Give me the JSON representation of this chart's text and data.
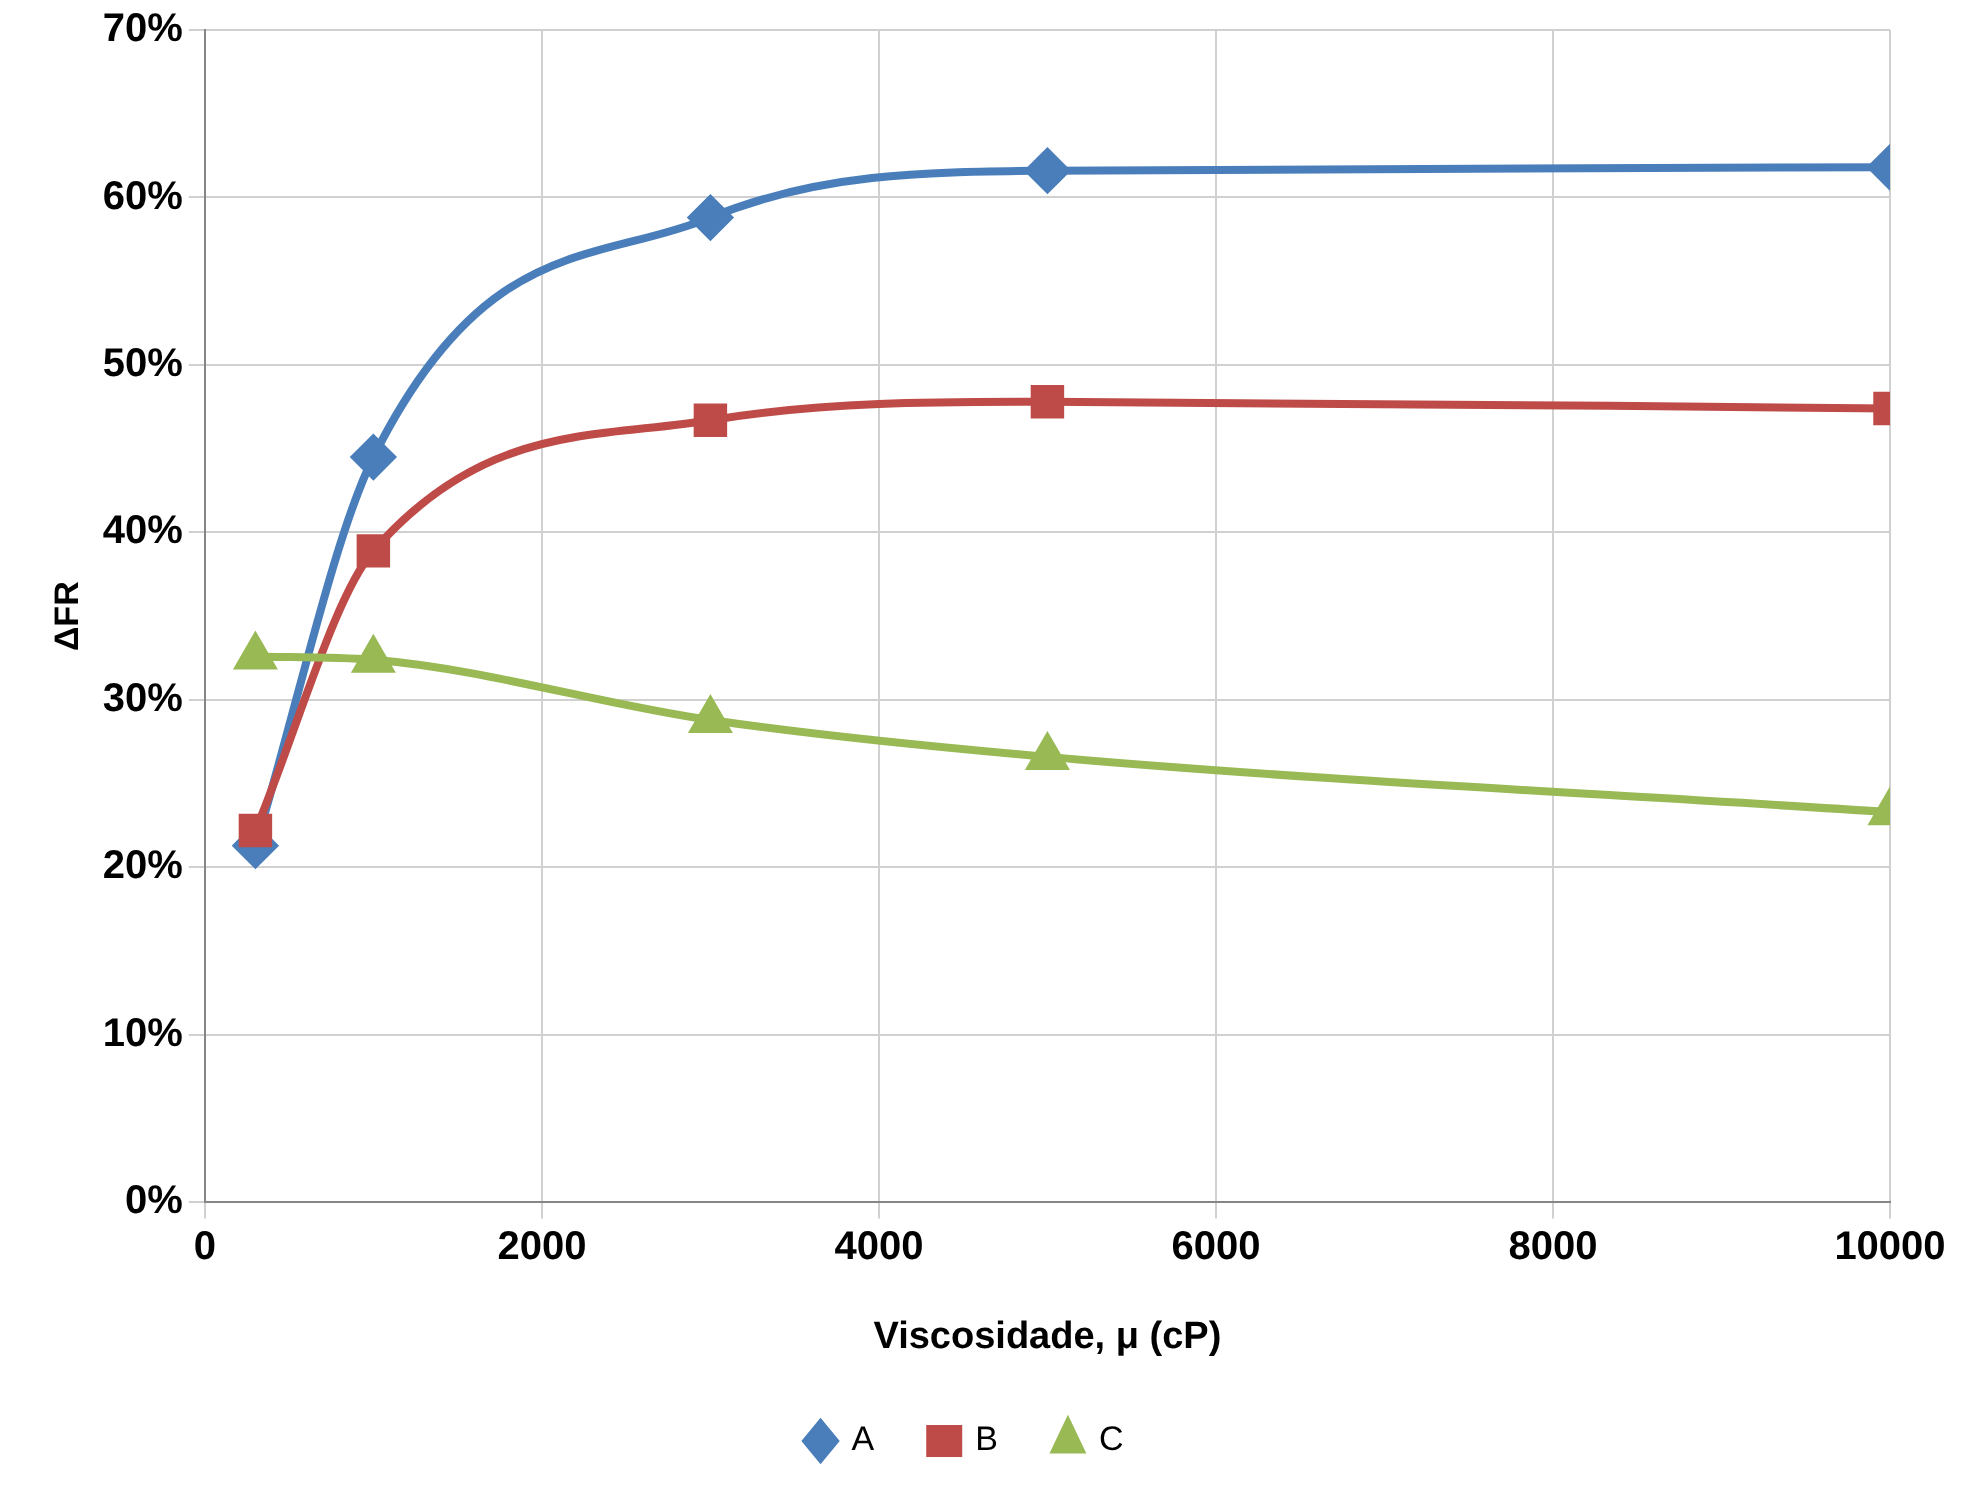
{
  "chart_data": {
    "type": "line",
    "xlabel": "Viscosidade, μ (cP)",
    "ylabel": "ΔFR",
    "x": [
      300,
      1000,
      3000,
      5000,
      10000
    ],
    "series": [
      {
        "name": "A",
        "color": "#4a7ebb",
        "marker": "diamond",
        "values": [
          21.3,
          44.5,
          58.8,
          61.6,
          61.8
        ]
      },
      {
        "name": "B",
        "color": "#be4b48",
        "marker": "square",
        "values": [
          22.2,
          38.9,
          46.7,
          47.8,
          47.4
        ]
      },
      {
        "name": "C",
        "color": "#98b954",
        "marker": "triangle",
        "values": [
          32.6,
          32.4,
          28.8,
          26.6,
          23.3
        ]
      }
    ],
    "xlim": [
      0,
      10000
    ],
    "xticks": [
      0,
      2000,
      4000,
      6000,
      8000,
      10000
    ],
    "ylim": [
      0,
      70
    ],
    "yticks": [
      {
        "value": 0,
        "label": "0%"
      },
      {
        "value": 10,
        "label": "10%"
      },
      {
        "value": 20,
        "label": "20%"
      },
      {
        "value": 30,
        "label": "30%"
      },
      {
        "value": 40,
        "label": "40%"
      },
      {
        "value": 50,
        "label": "50%"
      },
      {
        "value": 60,
        "label": "60%"
      },
      {
        "value": 70,
        "label": "70%"
      }
    ],
    "grid": true,
    "legend": "bottom",
    "line_style": "solid"
  }
}
